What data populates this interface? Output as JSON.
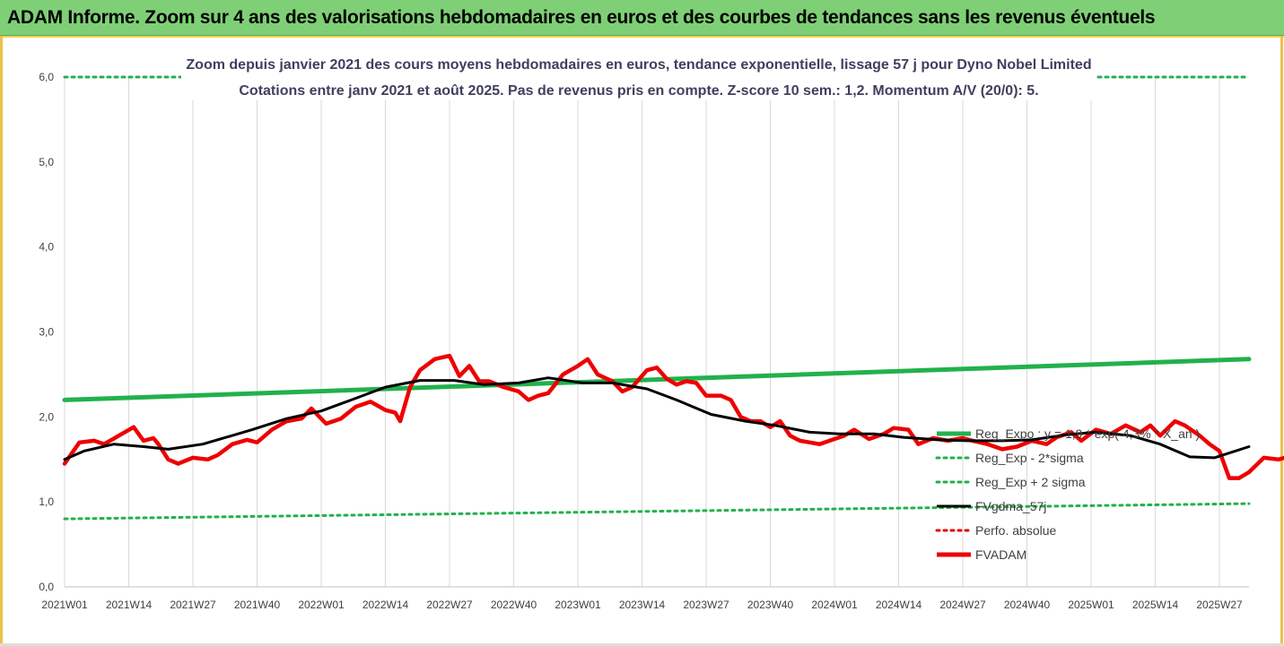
{
  "header": {
    "title": "ADAM Informe. Zoom sur 4 ans des valorisations hebdomadaires en euros et des courbes de tendances sans les revenus éventuels"
  },
  "colors": {
    "header_bg": "#7fcf76",
    "reg_expo": "#22b14c",
    "reg_band": "#22b14c",
    "fvgdma": "#000000",
    "perfo": "#e00000",
    "fvadam": "#ee0000"
  },
  "chart_data": {
    "type": "line",
    "title": "Zoom depuis janvier 2021 des cours moyens hebdomadaires en euros, tendance exponentielle, lissage 57 j pour Dyno Nobel Limited",
    "subtitle": "Cotations entre janv 2021 et août 2025.  Pas de revenus pris en compte. Z-score 10 sem.: 1,2. Momentum A/V (20/0): 5.",
    "xlabel": "",
    "ylabel": "",
    "ylim": [
      0,
      6
    ],
    "y_ticks": [
      "0,0",
      "1,0",
      "2,0",
      "3,0",
      "4,0",
      "5,0",
      "6,0"
    ],
    "x_ticks": [
      "2021W01",
      "2021W14",
      "2021W27",
      "2021W40",
      "2022W01",
      "2022W14",
      "2022W27",
      "2022W40",
      "2023W01",
      "2023W14",
      "2023W27",
      "2023W40",
      "2024W01",
      "2024W14",
      "2024W27",
      "2024W40",
      "2025W01",
      "2025W14",
      "2025W27"
    ],
    "grid": "vertical",
    "legend_position": "lower-right",
    "series": [
      {
        "name": "Reg_Expo : y = 1,9 * exp( 4,3% *  X_an )",
        "style": "solid-thick",
        "anchors": [
          [
            0,
            2.2
          ],
          [
            240,
            2.68
          ]
        ]
      },
      {
        "name": "Reg_Exp - 2*sigma",
        "style": "dotted",
        "anchors": [
          [
            0,
            0.8
          ],
          [
            240,
            0.98
          ]
        ]
      },
      {
        "name": "Reg_Exp + 2 sigma",
        "style": "dotted",
        "anchors": [
          [
            0,
            6.0
          ],
          [
            240,
            6.0
          ]
        ]
      },
      {
        "name": "FVgdma_57j",
        "style": "solid",
        "anchors": [
          [
            0,
            1.5
          ],
          [
            4,
            1.6
          ],
          [
            10,
            1.68
          ],
          [
            16,
            1.65
          ],
          [
            21,
            1.62
          ],
          [
            28,
            1.68
          ],
          [
            38,
            1.85
          ],
          [
            45,
            1.98
          ],
          [
            52,
            2.07
          ],
          [
            59,
            2.22
          ],
          [
            65,
            2.35
          ],
          [
            72,
            2.43
          ],
          [
            79,
            2.43
          ],
          [
            85,
            2.38
          ],
          [
            92,
            2.4
          ],
          [
            98,
            2.46
          ],
          [
            105,
            2.4
          ],
          [
            111,
            2.4
          ],
          [
            118,
            2.33
          ],
          [
            124,
            2.2
          ],
          [
            131,
            2.03
          ],
          [
            138,
            1.95
          ],
          [
            144,
            1.9
          ],
          [
            151,
            1.82
          ],
          [
            157,
            1.8
          ],
          [
            164,
            1.8
          ],
          [
            170,
            1.76
          ],
          [
            177,
            1.73
          ],
          [
            183,
            1.72
          ],
          [
            190,
            1.72
          ],
          [
            196,
            1.73
          ],
          [
            203,
            1.79
          ],
          [
            209,
            1.82
          ],
          [
            216,
            1.78
          ],
          [
            222,
            1.68
          ],
          [
            228,
            1.53
          ],
          [
            233,
            1.52
          ],
          [
            240,
            1.65
          ]
        ]
      },
      {
        "name": "Perfo. absolue",
        "style": "dotted",
        "anchors": []
      },
      {
        "name": "FVADAM",
        "style": "solid-thick",
        "anchors": [
          [
            0,
            1.45
          ],
          [
            3,
            1.7
          ],
          [
            6,
            1.72
          ],
          [
            8,
            1.68
          ],
          [
            11,
            1.78
          ],
          [
            14,
            1.88
          ],
          [
            16,
            1.72
          ],
          [
            18,
            1.75
          ],
          [
            19,
            1.68
          ],
          [
            21,
            1.5
          ],
          [
            23,
            1.45
          ],
          [
            26,
            1.52
          ],
          [
            29,
            1.5
          ],
          [
            31,
            1.55
          ],
          [
            34,
            1.68
          ],
          [
            37,
            1.73
          ],
          [
            39,
            1.7
          ],
          [
            42,
            1.85
          ],
          [
            45,
            1.95
          ],
          [
            48,
            1.98
          ],
          [
            50,
            2.1
          ],
          [
            53,
            1.92
          ],
          [
            56,
            1.98
          ],
          [
            59,
            2.12
          ],
          [
            62,
            2.18
          ],
          [
            65,
            2.08
          ],
          [
            67,
            2.05
          ],
          [
            68,
            1.95
          ],
          [
            70,
            2.35
          ],
          [
            72,
            2.55
          ],
          [
            75,
            2.68
          ],
          [
            78,
            2.72
          ],
          [
            80,
            2.48
          ],
          [
            82,
            2.6
          ],
          [
            84,
            2.42
          ],
          [
            86,
            2.42
          ],
          [
            89,
            2.35
          ],
          [
            92,
            2.3
          ],
          [
            94,
            2.2
          ],
          [
            96,
            2.25
          ],
          [
            98,
            2.28
          ],
          [
            101,
            2.5
          ],
          [
            104,
            2.6
          ],
          [
            106,
            2.68
          ],
          [
            108,
            2.5
          ],
          [
            111,
            2.42
          ],
          [
            113,
            2.3
          ],
          [
            115,
            2.35
          ],
          [
            118,
            2.55
          ],
          [
            120,
            2.58
          ],
          [
            122,
            2.45
          ],
          [
            124,
            2.38
          ],
          [
            126,
            2.42
          ],
          [
            128,
            2.4
          ],
          [
            130,
            2.25
          ],
          [
            133,
            2.25
          ],
          [
            135,
            2.2
          ],
          [
            137,
            2.0
          ],
          [
            139,
            1.95
          ],
          [
            141,
            1.95
          ],
          [
            143,
            1.88
          ],
          [
            145,
            1.95
          ],
          [
            147,
            1.78
          ],
          [
            149,
            1.72
          ],
          [
            151,
            1.7
          ],
          [
            153,
            1.68
          ],
          [
            155,
            1.72
          ],
          [
            158,
            1.78
          ],
          [
            160,
            1.85
          ],
          [
            163,
            1.74
          ],
          [
            166,
            1.8
          ],
          [
            168,
            1.87
          ],
          [
            171,
            1.85
          ],
          [
            173,
            1.68
          ],
          [
            176,
            1.75
          ],
          [
            179,
            1.72
          ],
          [
            182,
            1.75
          ],
          [
            184,
            1.72
          ],
          [
            187,
            1.68
          ],
          [
            190,
            1.62
          ],
          [
            193,
            1.65
          ],
          [
            196,
            1.72
          ],
          [
            199,
            1.68
          ],
          [
            201,
            1.76
          ],
          [
            204,
            1.82
          ],
          [
            206,
            1.72
          ],
          [
            209,
            1.85
          ],
          [
            212,
            1.8
          ],
          [
            215,
            1.9
          ],
          [
            218,
            1.82
          ],
          [
            220,
            1.9
          ],
          [
            222,
            1.78
          ],
          [
            225,
            1.95
          ],
          [
            227,
            1.9
          ],
          [
            230,
            1.78
          ],
          [
            232,
            1.68
          ],
          [
            234,
            1.6
          ],
          [
            236,
            1.28
          ],
          [
            238,
            1.28
          ],
          [
            240,
            1.35
          ],
          [
            243,
            1.52
          ],
          [
            246,
            1.5
          ],
          [
            249,
            1.55
          ],
          [
            252,
            1.6
          ],
          [
            255,
            1.65
          ],
          [
            258,
            1.72
          ]
        ]
      }
    ]
  }
}
